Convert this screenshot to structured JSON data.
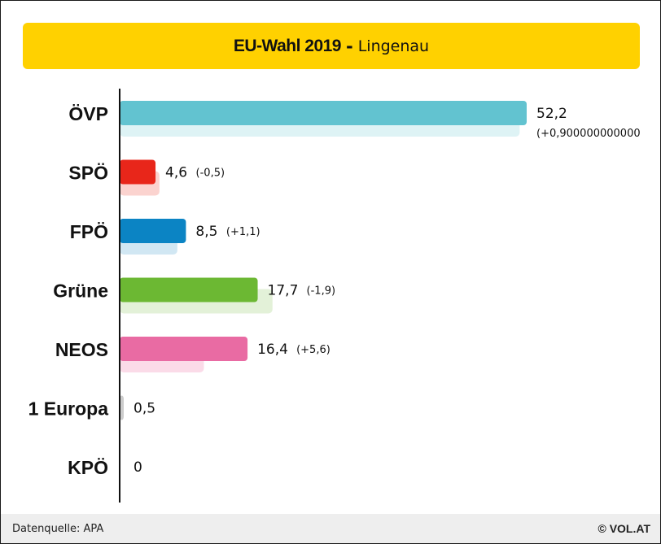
{
  "title": {
    "main": "EU-Wahl 2019",
    "separator": "-",
    "sub": "Lingenau"
  },
  "footer": {
    "source": "Datenquelle: APA",
    "brand": "© VOL.AT"
  },
  "chart_data": {
    "type": "bar",
    "orientation": "horizontal",
    "categories": [
      "ÖVP",
      "SPÖ",
      "FPÖ",
      "Grüne",
      "NEOS",
      "1 Europa",
      "KPÖ"
    ],
    "series": [
      {
        "values": [
          52.2,
          4.6,
          8.5,
          17.7,
          16.4,
          0.5,
          0
        ]
      },
      {
        "values": [
          51.3,
          5.1,
          7.4,
          19.6,
          10.8,
          null,
          null
        ]
      }
    ],
    "value_labels": [
      "52,2",
      "4,6",
      "8,5",
      "17,7",
      "16,4",
      "0,5",
      "0"
    ],
    "change_labels": [
      "(+0,900000000000",
      "(-0,5)",
      "(+1,1)",
      "(-1,9)",
      "(+5,6)",
      "",
      ""
    ],
    "colors": [
      "#62c3d0",
      "#e8261a",
      "#0b84c4",
      "#6cb833",
      "#e96ba3",
      "#cccccc",
      "#999999"
    ],
    "previous_colors": [
      "#def3f5",
      "#fbd3cf",
      "#d1e7f3",
      "#e3f1d8",
      "#fbdbe8",
      "#eeeeee",
      "#eeeeee"
    ],
    "xlim": [
      0,
      55
    ],
    "grid": false,
    "legend": "none"
  }
}
